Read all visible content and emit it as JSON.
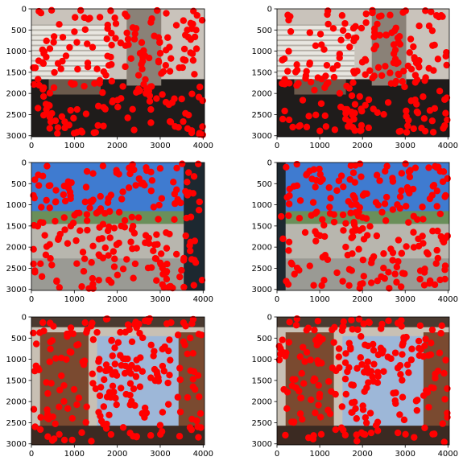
{
  "figure": {
    "background": "#ffffff",
    "point_color": "#ff0000"
  },
  "chart_data": [
    {
      "type": "scatter",
      "scene": "Office interior with window blinds (left view)",
      "image_palette": [
        "#c9c3bb",
        "#8a8177",
        "#1f1c1b",
        "#6b5a4c"
      ],
      "xlim": [
        0,
        4032
      ],
      "ylim": [
        3024,
        0
      ],
      "xticks": [
        "0",
        "1000",
        "2000",
        "3000",
        "4000"
      ],
      "yticks": [
        "0",
        "500",
        "1000",
        "1500",
        "2000",
        "2500",
        "3000"
      ],
      "grid": false,
      "points": []
    },
    {
      "type": "scatter",
      "scene": "Office interior with window blinds (right view)",
      "image_palette": [
        "#c9c3bb",
        "#8a8177",
        "#1f1c1b",
        "#6b5a4c"
      ],
      "xlim": [
        0,
        4032
      ],
      "ylim": [
        3024,
        0
      ],
      "xticks": [
        "0",
        "1000",
        "2000",
        "3000",
        "4000"
      ],
      "yticks": [
        "0",
        "500",
        "1000",
        "1500",
        "2000",
        "2500",
        "3000"
      ],
      "grid": false,
      "points": []
    },
    {
      "type": "scatter",
      "scene": "City skyline through window (left view)",
      "image_palette": [
        "#3f7bd0",
        "#6a8f5a",
        "#b8b6ae",
        "#1d2830"
      ],
      "xlim": [
        0,
        4032
      ],
      "ylim": [
        3024,
        0
      ],
      "xticks": [
        "0",
        "1000",
        "2000",
        "3000",
        "4000"
      ],
      "yticks": [
        "0",
        "500",
        "1000",
        "1500",
        "2000",
        "2500",
        "3000"
      ],
      "grid": false,
      "points": []
    },
    {
      "type": "scatter",
      "scene": "City skyline through window (right view)",
      "image_palette": [
        "#3f7bd0",
        "#6a8f5a",
        "#b8b6ae",
        "#1d2830"
      ],
      "xlim": [
        0,
        4032
      ],
      "ylim": [
        3024,
        0
      ],
      "xticks": [
        "0",
        "1000",
        "2000",
        "3000",
        "4000"
      ],
      "yticks": [
        "0",
        "500",
        "1000",
        "1500",
        "2000",
        "2500",
        "3000"
      ],
      "grid": false,
      "points": []
    },
    {
      "type": "scatter",
      "scene": "Wooden doors and glass partition (left view)",
      "image_palette": [
        "#7a4a30",
        "#c8c0b4",
        "#9db7d8",
        "#3b2a22"
      ],
      "xlim": [
        0,
        4032
      ],
      "ylim": [
        3024,
        0
      ],
      "xticks": [
        "0",
        "1000",
        "2000",
        "3000",
        "4000"
      ],
      "yticks": [
        "0",
        "500",
        "1000",
        "1500",
        "2000",
        "2500",
        "3000"
      ],
      "grid": false,
      "points": []
    },
    {
      "type": "scatter",
      "scene": "Wooden doors and glass partition (right view)",
      "image_palette": [
        "#7a4a30",
        "#c8c0b4",
        "#9db7d8",
        "#3b2a22"
      ],
      "xlim": [
        0,
        4032
      ],
      "ylim": [
        3024,
        0
      ],
      "xticks": [
        "0",
        "1000",
        "2000",
        "3000",
        "4000"
      ],
      "yticks": [
        "0",
        "500",
        "1000",
        "1500",
        "2000",
        "2500",
        "3000"
      ],
      "grid": false,
      "points": []
    }
  ]
}
